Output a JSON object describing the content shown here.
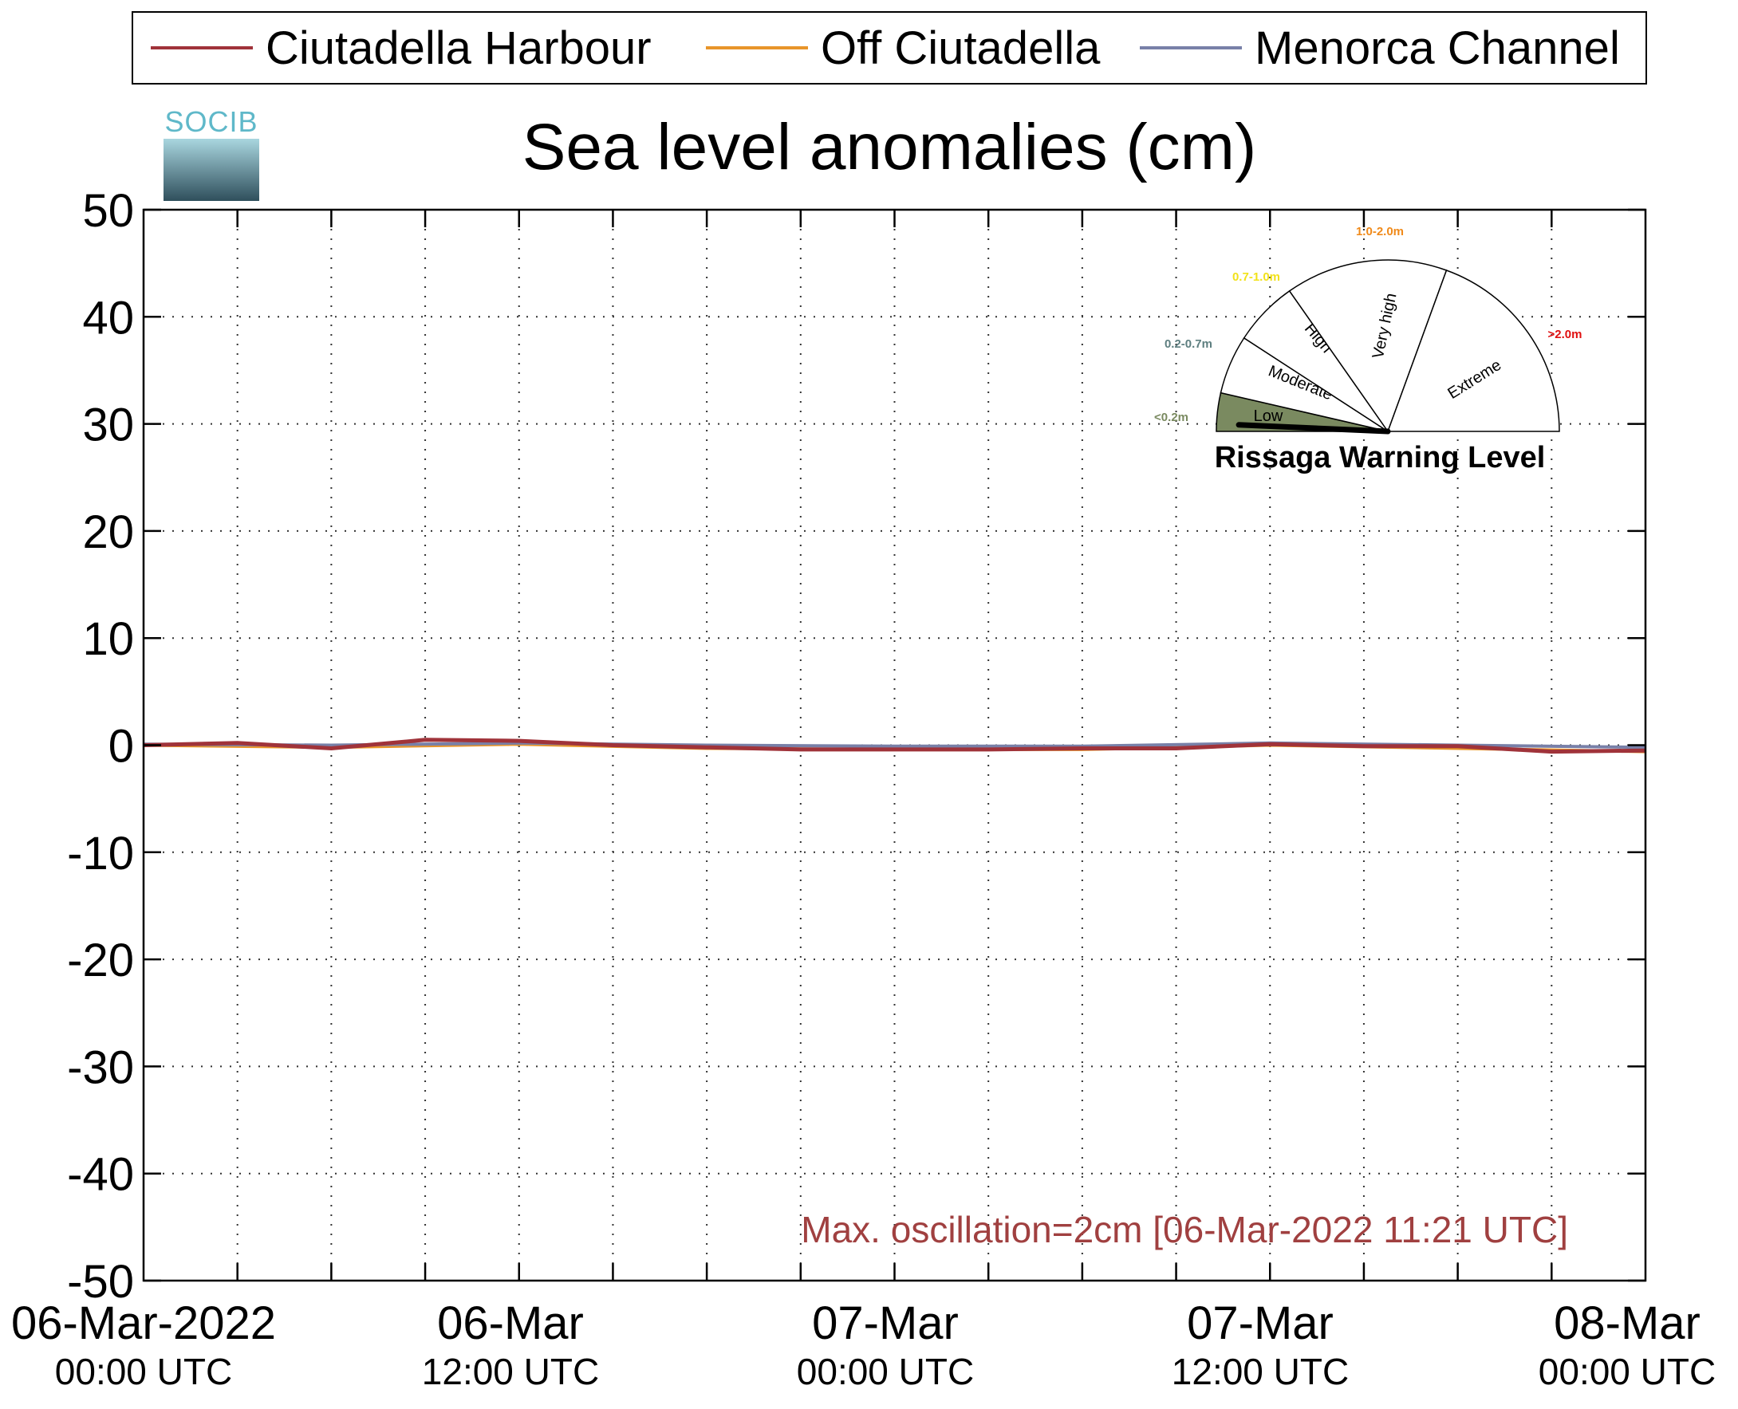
{
  "legend": {
    "items": [
      {
        "label": "Ciutadella Harbour",
        "color": "#a0333a"
      },
      {
        "label": "Off Ciutadella",
        "color": "#e8952a"
      },
      {
        "label": "Menorca Channel",
        "color": "#7880a8"
      }
    ]
  },
  "logo": {
    "text": "SOCIB"
  },
  "annotation": "Max. oscillation=2cm [06-Mar-2022 11:21 UTC]",
  "gauge": {
    "title": "Rissaga Warning Level",
    "segments": [
      {
        "name": "Low",
        "range": "<0.2m",
        "color": "#7a8a60"
      },
      {
        "name": "Moderate",
        "range": "0.2-0.7m",
        "color": "#5e7f80"
      },
      {
        "name": "High",
        "range": "0.7-1.0m",
        "color": "#f2e21a"
      },
      {
        "name": "Very high",
        "range": "1.0-2.0m",
        "color": "#f08a1a"
      },
      {
        "name": "Extreme",
        "range": ">2.0m",
        "color": "#e01010"
      }
    ],
    "current_level": "Low"
  },
  "chart_data": {
    "type": "line",
    "title": "Sea level anomalies (cm)",
    "xlabel": "",
    "ylabel": "",
    "ylim": [
      -50,
      50
    ],
    "yticks": [
      -50,
      -40,
      -30,
      -20,
      -10,
      0,
      10,
      20,
      30,
      40,
      50
    ],
    "xlim_hours": [
      0,
      48
    ],
    "x_tick_labels": [
      {
        "line1": "06-Mar-2022",
        "line2": "00:00 UTC"
      },
      {
        "line1": "06-Mar",
        "line2": "12:00 UTC"
      },
      {
        "line1": "07-Mar",
        "line2": "00:00 UTC"
      },
      {
        "line1": "07-Mar",
        "line2": "12:00 UTC"
      },
      {
        "line1": "08-Mar",
        "line2": "00:00 UTC"
      }
    ],
    "grid": true,
    "legend_position": "top",
    "series": [
      {
        "name": "Ciutadella Harbour",
        "color": "#a0333a",
        "x": [
          "06-Mar 00:00",
          "06-Mar 03:00",
          "06-Mar 06:00",
          "06-Mar 09:00",
          "06-Mar 12:00",
          "06-Mar 15:00",
          "06-Mar 18:00",
          "06-Mar 21:00",
          "07-Mar 00:00",
          "07-Mar 03:00",
          "07-Mar 06:00",
          "07-Mar 09:00",
          "07-Mar 12:00",
          "07-Mar 15:00",
          "07-Mar 18:00",
          "07-Mar 21:00",
          "08-Mar 00:00"
        ],
        "values": [
          0,
          0.2,
          -0.3,
          0.5,
          0.4,
          0,
          -0.2,
          -0.4,
          -0.4,
          -0.4,
          -0.3,
          -0.3,
          0.1,
          -0.1,
          -0.1,
          -0.6,
          -0.5
        ]
      },
      {
        "name": "Off Ciutadella",
        "color": "#e8952a",
        "x": [
          "06-Mar 00:00",
          "06-Mar 06:00",
          "06-Mar 12:00",
          "06-Mar 18:00",
          "07-Mar 00:00",
          "07-Mar 06:00",
          "07-Mar 12:00",
          "07-Mar 18:00",
          "08-Mar 00:00"
        ],
        "values": [
          0,
          -0.2,
          0.1,
          -0.3,
          -0.4,
          -0.4,
          0,
          -0.3,
          -0.6
        ]
      },
      {
        "name": "Menorca Channel",
        "color": "#7880a8",
        "x": [
          "06-Mar 00:00",
          "06-Mar 06:00",
          "06-Mar 12:00",
          "06-Mar 18:00",
          "07-Mar 00:00",
          "07-Mar 06:00",
          "07-Mar 12:00",
          "07-Mar 18:00",
          "08-Mar 00:00"
        ],
        "values": [
          0.1,
          0,
          0.2,
          0,
          -0.1,
          -0.1,
          0.2,
          0,
          -0.2
        ]
      }
    ]
  }
}
